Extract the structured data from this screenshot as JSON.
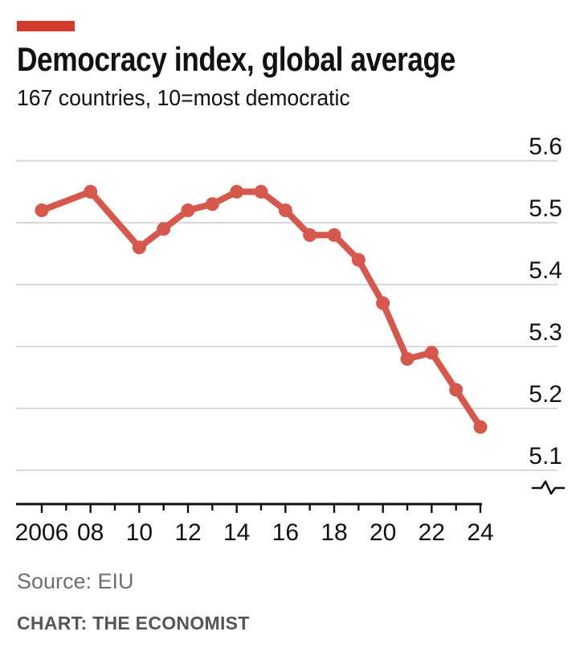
{
  "header": {
    "title": "Democracy index, global average",
    "subtitle": "167 countries, 10=most democratic"
  },
  "footer": {
    "source": "Source: EIU",
    "credit": "CHART: THE ECONOMIST"
  },
  "colors": {
    "tag_red": "#d23b2c",
    "line_red": "#d6574c",
    "grid_gray": "#dadada",
    "axis_black": "#111111",
    "text_black": "#111111",
    "source_gray": "#6f6f6f",
    "credit_gray": "#555555"
  },
  "chart_data": {
    "type": "line",
    "title": "Democracy index, global average",
    "subtitle": "167 countries, 10=most democratic",
    "x": [
      2006,
      2008,
      2010,
      2011,
      2012,
      2013,
      2014,
      2015,
      2016,
      2017,
      2018,
      2019,
      2020,
      2021,
      2022,
      2023,
      2024
    ],
    "values": [
      5.52,
      5.55,
      5.46,
      5.49,
      5.52,
      5.53,
      5.55,
      5.55,
      5.52,
      5.48,
      5.48,
      5.44,
      5.37,
      5.28,
      5.29,
      5.23,
      5.17
    ],
    "xlabel": "",
    "ylabel": "",
    "xlim": [
      2006,
      2024
    ],
    "ylim": [
      5.1,
      5.6
    ],
    "yticks": [
      5.6,
      5.5,
      5.4,
      5.3,
      5.2,
      5.1
    ],
    "ytick_labels": [
      "5.6",
      "5.5",
      "5.4",
      "5.3",
      "5.2",
      "5.1"
    ],
    "xticks": [
      [
        2006,
        "2006"
      ],
      [
        2008,
        "08"
      ],
      [
        2010,
        "10"
      ],
      [
        2012,
        "12"
      ],
      [
        2014,
        "14"
      ],
      [
        2016,
        "16"
      ],
      [
        2018,
        "18"
      ],
      [
        2020,
        "20"
      ],
      [
        2022,
        "22"
      ],
      [
        2024,
        "24"
      ]
    ],
    "minor_ticks_every_year": true,
    "grid": "horizontal",
    "legend": "none",
    "axis_break_marker": true,
    "y_axis_side": "right",
    "line_color": "#d6574c",
    "marker": "circle"
  }
}
